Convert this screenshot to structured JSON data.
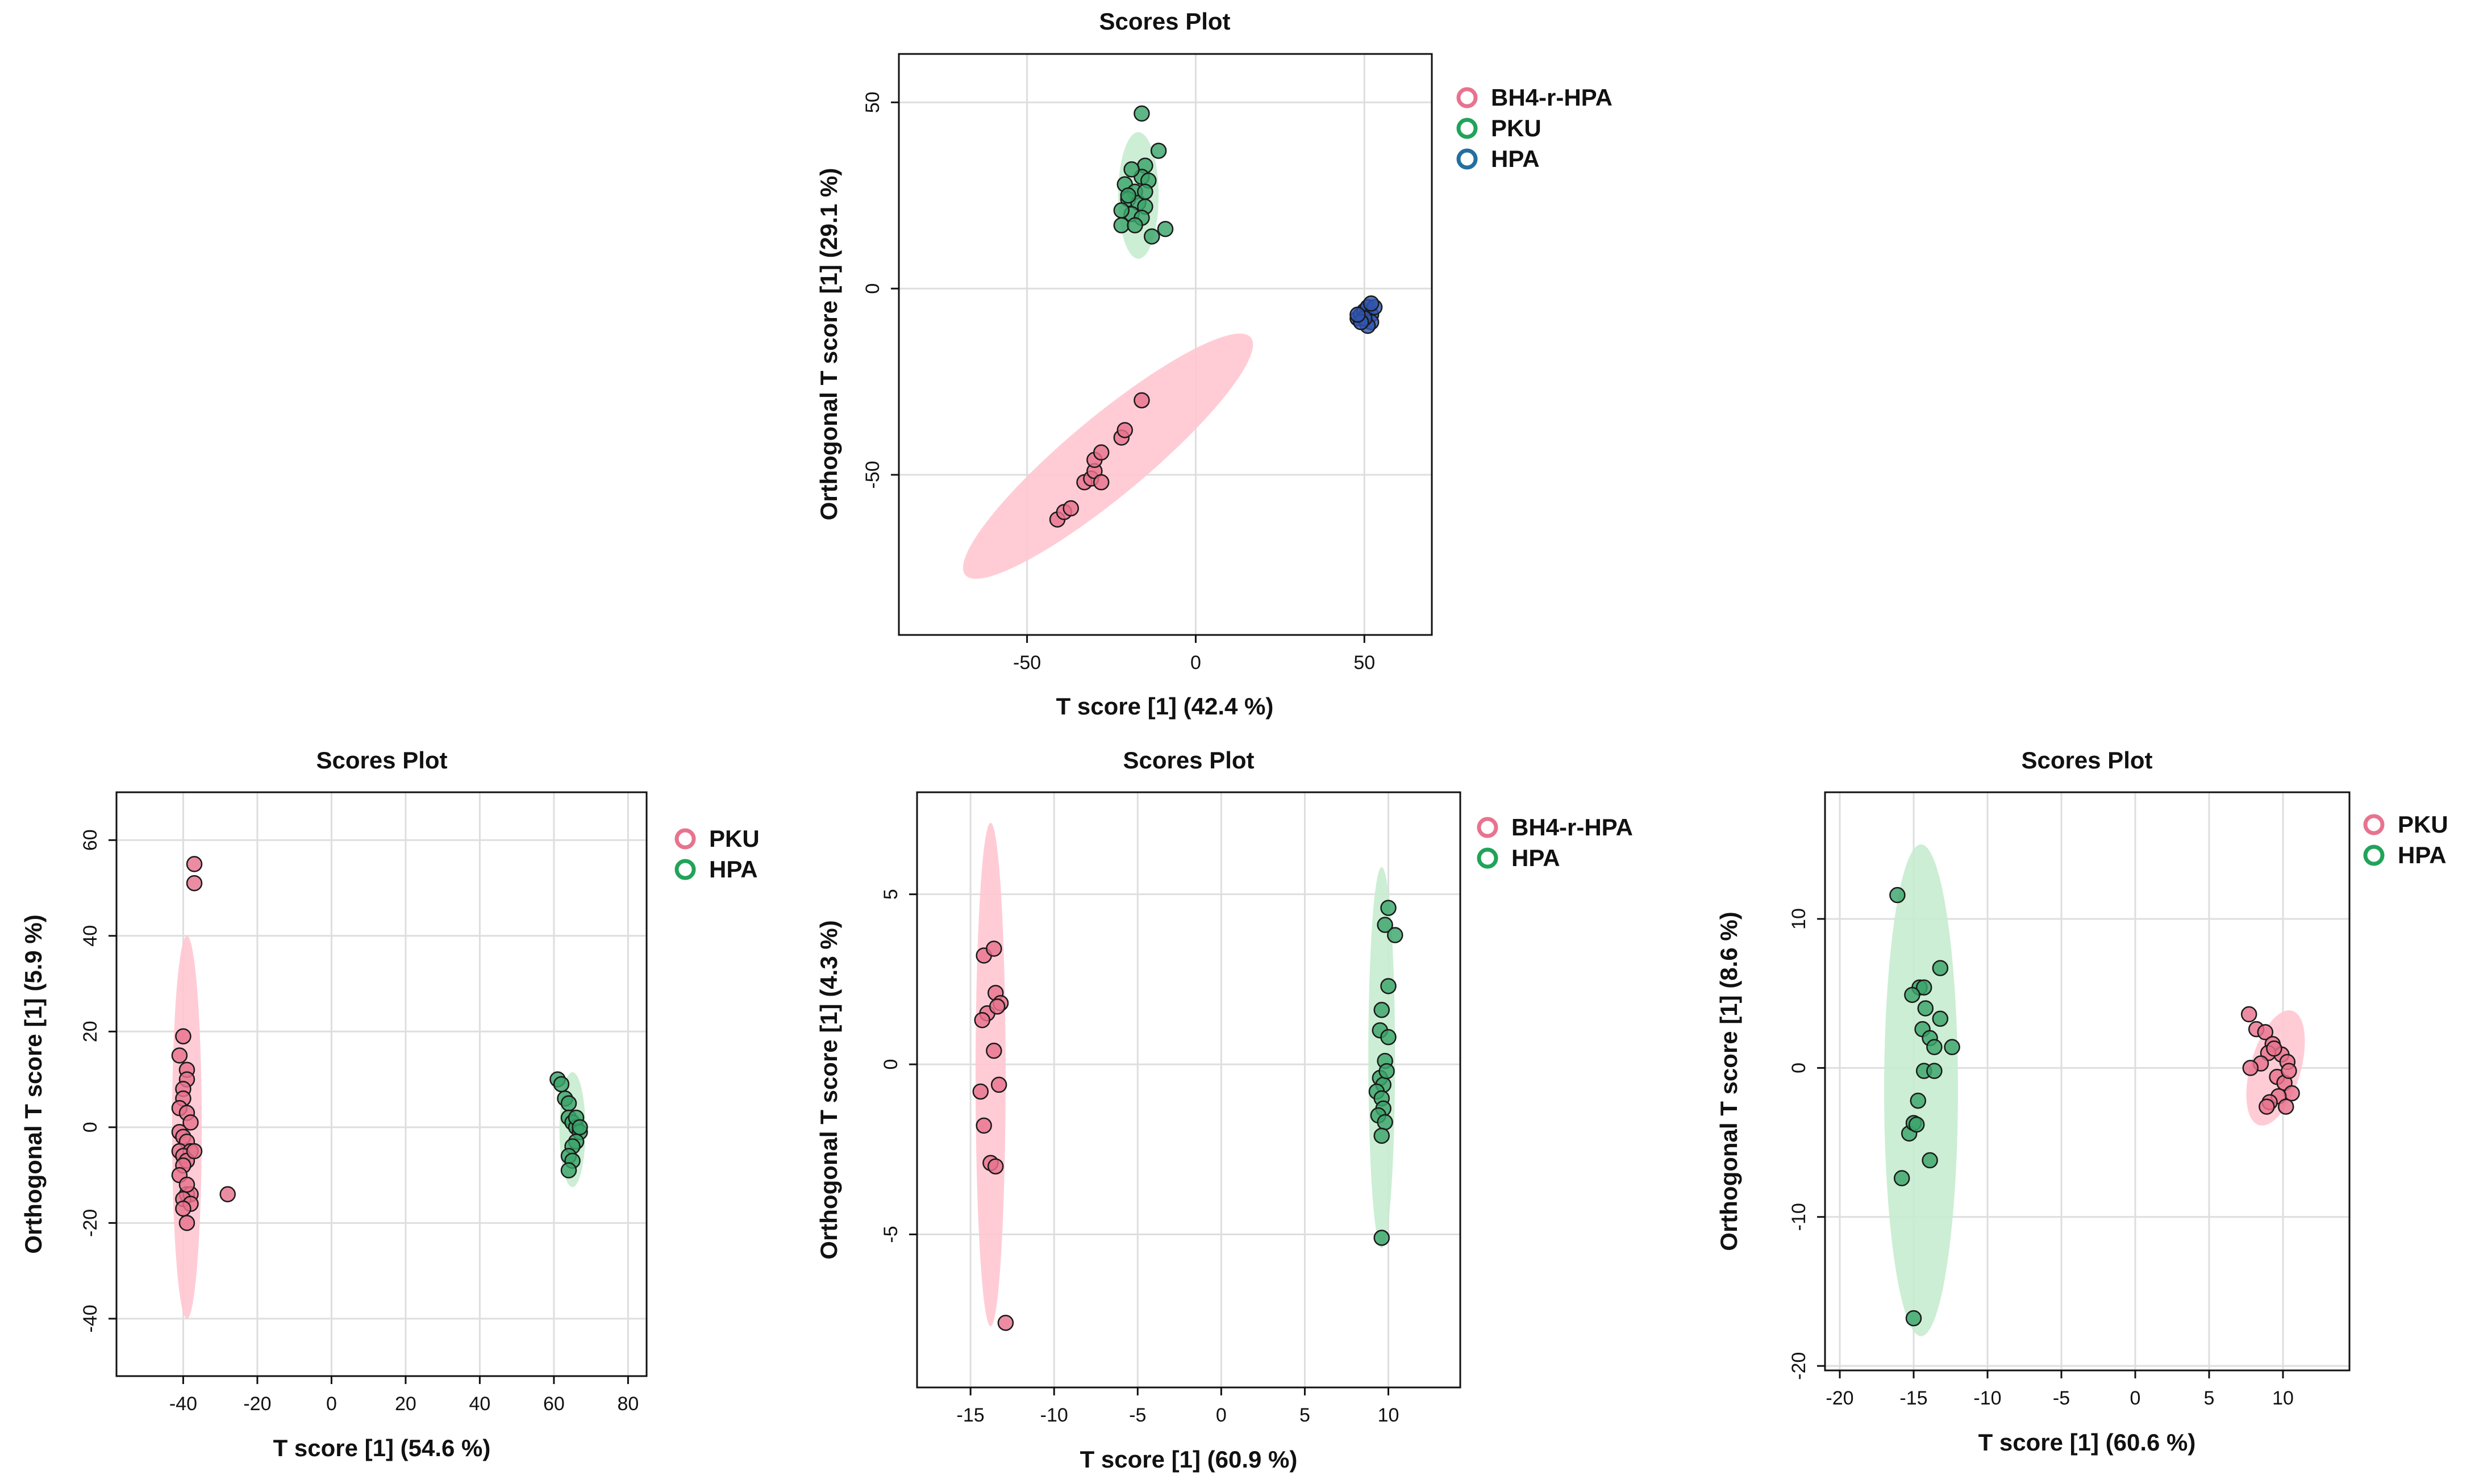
{
  "colors": {
    "pink_fill": "#e8738e",
    "pink_ellipse": "#ffc7d2",
    "green_fill": "#3aa56a",
    "green_ellipse": "#c6eccf",
    "blue_fill": "#2f55b0",
    "legend_pink": "#e8738e",
    "legend_green": "#21a35a",
    "legend_blue": "#236fa0"
  },
  "chart_data": [
    {
      "type": "scatter",
      "title": "Scores Plot",
      "xlabel": "T score [1] (42.4 %)",
      "ylabel": "Orthogonal T score [1] (29.1 %)",
      "xlim": [
        -88,
        70
      ],
      "ylim": [
        -93,
        63
      ],
      "xticks": [
        -50,
        0,
        50
      ],
      "xtick_labels": [
        "-50",
        "0",
        "50"
      ],
      "yticks": [
        50,
        0,
        -50
      ],
      "ytick_labels": [
        "50",
        "0",
        "-50"
      ],
      "legend": [
        {
          "label": "BH4-r-HPA",
          "color": "#e8738e"
        },
        {
          "label": "PKU",
          "color": "#21a35a"
        },
        {
          "label": "HPA",
          "color": "#236fa0"
        }
      ],
      "series": [
        {
          "name": "BH4-r-HPA",
          "fill": "#e8738e",
          "ellipse": {
            "center": [
              -26,
              -45
            ],
            "semi_axes": [
              53,
              11
            ],
            "angle_deg": 37,
            "color": "#ffc7d2"
          },
          "points": [
            [
              -41,
              -62
            ],
            [
              -39,
              -60
            ],
            [
              -37,
              -59
            ],
            [
              -33,
              -52
            ],
            [
              -31,
              -51
            ],
            [
              -30,
              -49
            ],
            [
              -28,
              -52
            ],
            [
              -30,
              -46
            ],
            [
              -28,
              -44
            ],
            [
              -22,
              -40
            ],
            [
              -21,
              -38
            ],
            [
              -16,
              -30
            ]
          ]
        },
        {
          "name": "PKU",
          "fill": "#3aa56a",
          "ellipse": {
            "center": [
              -17,
              25
            ],
            "semi_axes": [
              6,
              17
            ],
            "angle_deg": 0,
            "color": "#c6eccf"
          },
          "points": [
            [
              -16,
              47
            ],
            [
              -11,
              37
            ],
            [
              -15,
              33
            ],
            [
              -16,
              30
            ],
            [
              -19,
              32
            ],
            [
              -14,
              29
            ],
            [
              -21,
              28
            ],
            [
              -18,
              26
            ],
            [
              -20,
              24
            ],
            [
              -17,
              23
            ],
            [
              -15,
              22
            ],
            [
              -19,
              20
            ],
            [
              -16,
              19
            ],
            [
              -22,
              17
            ],
            [
              -18,
              17
            ],
            [
              -13,
              14
            ],
            [
              -9,
              16
            ],
            [
              -20,
              25
            ],
            [
              -15,
              26
            ],
            [
              -22,
              21
            ]
          ]
        },
        {
          "name": "HPA",
          "fill": "#2f55b0",
          "ellipse": null,
          "points": [
            [
              48,
              -8
            ],
            [
              49,
              -7
            ],
            [
              50,
              -6
            ],
            [
              51,
              -5
            ],
            [
              52,
              -7
            ],
            [
              52,
              -9
            ],
            [
              53,
              -5
            ],
            [
              51,
              -10
            ],
            [
              50,
              -8
            ],
            [
              49,
              -9
            ],
            [
              52,
              -4
            ],
            [
              48,
              -7
            ]
          ]
        }
      ]
    },
    {
      "type": "scatter",
      "title": "Scores Plot",
      "xlabel": "T score [1] (54.6 %)",
      "ylabel": "Orthogonal T score [1] (5.9 %)",
      "xlim": [
        -58,
        85
      ],
      "ylim": [
        -52,
        70
      ],
      "xticks": [
        -40,
        -20,
        0,
        20,
        40,
        60,
        80
      ],
      "xtick_labels": [
        "-40",
        "-20",
        "0",
        "20",
        "40",
        "60",
        "80"
      ],
      "yticks": [
        60,
        40,
        20,
        0,
        -20,
        -40
      ],
      "ytick_labels": [
        "60",
        "40",
        "20",
        "0",
        "-20",
        "-40"
      ],
      "legend": [
        {
          "label": "PKU",
          "color": "#e8738e"
        },
        {
          "label": "HPA",
          "color": "#21a35a"
        }
      ],
      "series": [
        {
          "name": "PKU",
          "fill": "#e8738e",
          "ellipse": {
            "center": [
              -39,
              0
            ],
            "semi_axes": [
              4,
              40
            ],
            "angle_deg": 0,
            "color": "#ffc7d2"
          },
          "points": [
            [
              -37,
              55
            ],
            [
              -37,
              51
            ],
            [
              -40,
              19
            ],
            [
              -41,
              15
            ],
            [
              -39,
              12
            ],
            [
              -39,
              10
            ],
            [
              -40,
              8
            ],
            [
              -40,
              6
            ],
            [
              -41,
              4
            ],
            [
              -39,
              3
            ],
            [
              -38,
              1
            ],
            [
              -41,
              -1
            ],
            [
              -40,
              -2
            ],
            [
              -39,
              -3
            ],
            [
              -41,
              -5
            ],
            [
              -38,
              -5
            ],
            [
              -40,
              -6
            ],
            [
              -39,
              -7
            ],
            [
              -40,
              -8
            ],
            [
              -41,
              -10
            ],
            [
              -39,
              -14
            ],
            [
              -38,
              -14
            ],
            [
              -40,
              -15
            ],
            [
              -38,
              -16
            ],
            [
              -40,
              -17
            ],
            [
              -39,
              -20
            ],
            [
              -28,
              -14
            ],
            [
              -37,
              -5
            ],
            [
              -39,
              -12
            ]
          ]
        },
        {
          "name": "HPA",
          "fill": "#3aa56a",
          "ellipse": {
            "center": [
              65,
              -0.5
            ],
            "semi_axes": [
              3.5,
              12
            ],
            "angle_deg": 0,
            "color": "#c6eccf"
          },
          "points": [
            [
              61,
              10
            ],
            [
              62,
              9
            ],
            [
              63,
              6
            ],
            [
              64,
              5
            ],
            [
              64,
              2
            ],
            [
              65,
              1
            ],
            [
              66,
              0
            ],
            [
              67,
              -1
            ],
            [
              66,
              -3
            ],
            [
              65,
              -4
            ],
            [
              64,
              -6
            ],
            [
              65,
              -7
            ],
            [
              64,
              -9
            ],
            [
              66,
              2
            ],
            [
              67,
              0
            ]
          ]
        }
      ]
    },
    {
      "type": "scatter",
      "title": "Scores Plot",
      "xlabel": "T score [1] (60.9 %)",
      "ylabel": "Orthogonal T score [1] (4.3 %)",
      "xlim": [
        -18.2,
        14.3
      ],
      "ylim": [
        -9.5,
        8
      ],
      "xticks": [
        -15,
        -10,
        -5,
        0,
        5,
        10
      ],
      "xtick_labels": [
        "-15",
        "-10",
        "-5",
        "0",
        "5",
        "10"
      ],
      "yticks": [
        5,
        0,
        -5
      ],
      "ytick_labels": [
        "5",
        "0",
        "-5"
      ],
      "legend": [
        {
          "label": "BH4-r-HPA",
          "color": "#e8738e"
        },
        {
          "label": "HPA",
          "color": "#21a35a"
        }
      ],
      "series": [
        {
          "name": "BH4-r-HPA",
          "fill": "#e8738e",
          "ellipse": {
            "center": [
              -13.8,
              -0.3
            ],
            "semi_axes": [
              0.9,
              7.4
            ],
            "angle_deg": 0,
            "color": "#ffc7d2"
          },
          "points": [
            [
              -14.2,
              3.2
            ],
            [
              -13.6,
              3.4
            ],
            [
              -13.5,
              2.1
            ],
            [
              -13.2,
              1.8
            ],
            [
              -14.0,
              1.5
            ],
            [
              -14.3,
              1.3
            ],
            [
              -13.6,
              0.4
            ],
            [
              -13.3,
              -0.6
            ],
            [
              -14.4,
              -0.8
            ],
            [
              -14.2,
              -1.8
            ],
            [
              -13.8,
              -2.9
            ],
            [
              -13.5,
              -3.0
            ],
            [
              -12.9,
              -7.6
            ],
            [
              -13.4,
              1.7
            ]
          ]
        },
        {
          "name": "HPA",
          "fill": "#3aa56a",
          "ellipse": {
            "center": [
              9.6,
              0.2
            ],
            "semi_axes": [
              0.8,
              5.6
            ],
            "angle_deg": 0,
            "color": "#c6eccf"
          },
          "points": [
            [
              10.0,
              4.6
            ],
            [
              9.8,
              4.1
            ],
            [
              10.4,
              3.8
            ],
            [
              10.0,
              2.3
            ],
            [
              9.6,
              1.6
            ],
            [
              9.5,
              1.0
            ],
            [
              10.0,
              0.8
            ],
            [
              9.8,
              0.1
            ],
            [
              9.5,
              -0.4
            ],
            [
              9.7,
              -0.6
            ],
            [
              9.3,
              -0.8
            ],
            [
              9.6,
              -1.0
            ],
            [
              9.7,
              -1.3
            ],
            [
              9.4,
              -1.5
            ],
            [
              9.8,
              -1.7
            ],
            [
              9.6,
              -2.1
            ],
            [
              9.6,
              -5.1
            ],
            [
              9.9,
              -0.2
            ]
          ]
        }
      ]
    },
    {
      "type": "scatter",
      "title": "Scores Plot",
      "xlabel": "T score [1] (60.6 %)",
      "ylabel": "Orthogonal T score [1] (8.6 %)",
      "xlim": [
        -21,
        14.5
      ],
      "ylim": [
        -20.3,
        18.5
      ],
      "xticks": [
        -20,
        -15,
        -10,
        -5,
        0,
        5,
        10
      ],
      "xtick_labels": [
        "-20",
        "-15",
        "-10",
        "-5",
        "0",
        "5",
        "10"
      ],
      "yticks": [
        10,
        0,
        -10,
        -20
      ],
      "ytick_labels": [
        "10",
        "0",
        "-10",
        "-20"
      ],
      "legend": [
        {
          "label": "PKU",
          "color": "#e8738e"
        },
        {
          "label": "HPA",
          "color": "#21a35a"
        }
      ],
      "series": [
        {
          "name": "PKU",
          "fill": "#e8738e",
          "ellipse": {
            "center": [
              9.5,
              0
            ],
            "semi_axes": [
              1.7,
              4.0
            ],
            "angle_deg": -16,
            "color": "#ffc7d2"
          },
          "points": [
            [
              7.7,
              3.6
            ],
            [
              8.2,
              2.6
            ],
            [
              8.8,
              2.4
            ],
            [
              9.3,
              1.6
            ],
            [
              9.9,
              0.9
            ],
            [
              10.3,
              0.4
            ],
            [
              9.0,
              1.0
            ],
            [
              8.5,
              0.3
            ],
            [
              7.8,
              0.0
            ],
            [
              9.6,
              -0.6
            ],
            [
              10.1,
              -1.0
            ],
            [
              10.6,
              -1.7
            ],
            [
              9.7,
              -1.9
            ],
            [
              9.1,
              -2.3
            ],
            [
              10.2,
              -2.6
            ],
            [
              8.9,
              -2.6
            ],
            [
              9.4,
              1.3
            ],
            [
              10.4,
              -0.2
            ]
          ]
        },
        {
          "name": "HPA",
          "fill": "#3aa56a",
          "ellipse": {
            "center": [
              -14.5,
              -1.5
            ],
            "semi_axes": [
              2.5,
              16.5
            ],
            "angle_deg": 0,
            "color": "#c6eccf"
          },
          "points": [
            [
              -16.1,
              11.6
            ],
            [
              -13.2,
              6.7
            ],
            [
              -14.6,
              5.4
            ],
            [
              -14.3,
              5.4
            ],
            [
              -15.1,
              4.9
            ],
            [
              -14.2,
              4.0
            ],
            [
              -13.2,
              3.3
            ],
            [
              -14.4,
              2.6
            ],
            [
              -13.9,
              2.0
            ],
            [
              -13.6,
              1.4
            ],
            [
              -12.4,
              1.4
            ],
            [
              -14.3,
              -0.2
            ],
            [
              -13.6,
              -0.2
            ],
            [
              -14.7,
              -2.2
            ],
            [
              -15.3,
              -4.4
            ],
            [
              -15.0,
              -3.7
            ],
            [
              -13.9,
              -6.2
            ],
            [
              -15.8,
              -7.4
            ],
            [
              -15.0,
              -16.8
            ],
            [
              -14.8,
              -3.8
            ]
          ]
        }
      ]
    }
  ]
}
